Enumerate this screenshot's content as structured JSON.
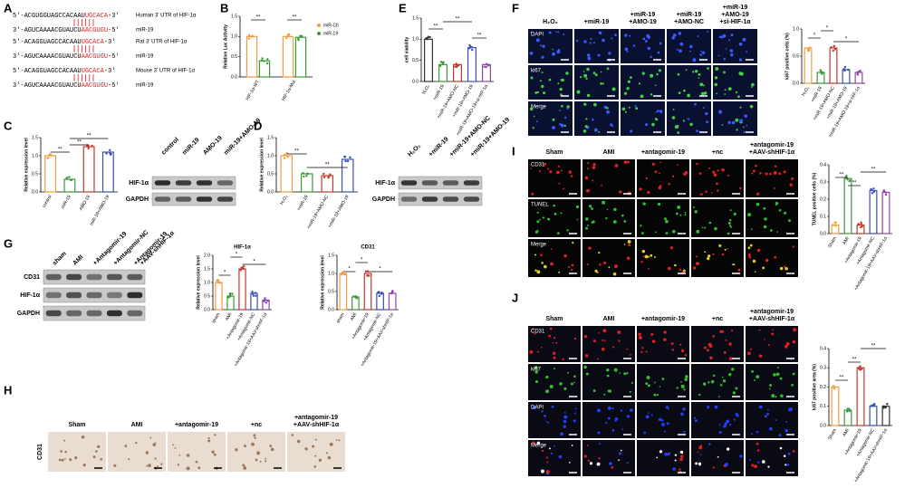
{
  "panels": {
    "A": {
      "label": "A",
      "rows": [
        {
          "pre": "5'-ACGUGGUAGCCACAAU",
          "red": "UGCACA",
          "post": "-3'",
          "name": "Human 3' UTR of HIF-1α"
        },
        {
          "pre": "3'-AGUCAAAACGUAUCU",
          "red": "AACGUGU",
          "post": "-5'",
          "name": "miR-19"
        },
        {
          "pre": "5'-ACAGGUAGCCACAAU",
          "red": "UGCACA",
          "post": "-3'",
          "name": "Rat 3' UTR of HIF-1α"
        },
        {
          "pre": "3'-AGUCAAAACGUAUCU",
          "red": "AACGUGU",
          "post": "-5'",
          "name": "miR-19"
        },
        {
          "pre": "5'-ACAGGUAGCCACAAU",
          "red": "UGCACA",
          "post": "-3'",
          "name": "Mouse 3' UTR of HIF-1α"
        },
        {
          "pre": "3'-AGUCAAAACGUAUCU",
          "red": "AACGUGU",
          "post": "-5'",
          "name": "miR-19"
        }
      ]
    },
    "B": {
      "label": "B"
    },
    "C": {
      "label": "C",
      "lanes": [
        "control",
        "miR-19",
        "AMO-19",
        "miR-19+AMO-19"
      ],
      "rows": [
        "HIF-1α",
        "GAPDH"
      ]
    },
    "D": {
      "label": "D",
      "lanes": [
        "H₂O₂",
        "+miR-19",
        "+miR-19+AMO-NC",
        "+miR-19+AMO-19"
      ],
      "rows": [
        "HIF-1α",
        "GAPDH"
      ]
    },
    "E": {
      "label": "E"
    },
    "F": {
      "label": "F",
      "columns": [
        [
          "H₂O₂"
        ],
        [
          "+miR-19"
        ],
        [
          "+miR-19",
          "+AMO-19"
        ],
        [
          "+miR-19",
          "+AMO-NC"
        ],
        [
          "+miR-19",
          "+AMO-19",
          "+si-HIF-1α"
        ]
      ],
      "rows": [
        "DAPI",
        "ki67",
        "Merge"
      ]
    },
    "G": {
      "label": "G",
      "lanes": [
        "sham",
        "AMI",
        "+Antagomir-19",
        "+Antagomir-NC",
        "+Antagomir-19",
        "+AAV-shHIF-1α"
      ],
      "rows": [
        "CD31",
        "HIF-1α",
        "GAPDH"
      ]
    },
    "H": {
      "label": "H",
      "columns": [
        [
          "Sham"
        ],
        [
          "AMI"
        ],
        [
          "+antagomir-19"
        ],
        [
          "+nc"
        ],
        [
          "+antagomir-19",
          "+AAV-shHIF-1α"
        ]
      ],
      "rows": [
        "CD31"
      ]
    },
    "I": {
      "label": "I",
      "columns": [
        [
          "Sham"
        ],
        [
          "AMI"
        ],
        [
          "+antagomir-19"
        ],
        [
          "+nc"
        ],
        [
          "+antagomir-19",
          "+AAV-shHIF-1α"
        ]
      ],
      "rows": [
        "CD31",
        "TUNEL",
        "Merge"
      ]
    },
    "J": {
      "label": "J",
      "columns": [
        [
          "Sham"
        ],
        [
          "AMI"
        ],
        [
          "+antagomir-19"
        ],
        [
          "+nc"
        ],
        [
          "+antagomir-19",
          "+AAV-shHIF-1α"
        ]
      ],
      "rows": [
        "CD31",
        "ki67",
        "DAPI",
        "Merge"
      ]
    }
  },
  "chart_data": [
    {
      "type": "bar",
      "y_label": "Relative Luc Activity",
      "categories": [
        "HIF-1α-WT",
        "HIF-1α-Mut"
      ],
      "series": [
        {
          "name": "miR-Ctl",
          "color": "#f39c3c",
          "values": [
            1,
            1
          ]
        },
        {
          "name": "miR-19",
          "color": "#3a9a3a",
          "values": [
            0.4,
            0.98
          ]
        }
      ],
      "ylim": [
        0,
        1.5
      ],
      "yticks": [
        {
          "value": 0,
          "label": "0.0"
        },
        0.5,
        {
          "value": 1,
          "label": "1.0"
        },
        1.5
      ],
      "annotations": [
        "**",
        "**"
      ]
    },
    {
      "type": "bar",
      "y_label": "Relative expression level",
      "categories": [
        "control",
        "miR-19",
        "AMO-19",
        "miR-19+AMO-19"
      ],
      "values": [
        1,
        0.35,
        1.25,
        1.1
      ],
      "colors": [
        "#f39c3c",
        "#3a9a3a",
        "#c0392b",
        "#3a4fb0"
      ],
      "ylim": [
        0,
        1.5
      ],
      "yticks": [
        {
          "value": 0,
          "label": "0.0"
        },
        0.5,
        {
          "value": 1,
          "label": "1.0"
        },
        1.5
      ],
      "annotations": [
        "**",
        "**",
        "**"
      ]
    },
    {
      "type": "bar",
      "y_label": "Relative expression level",
      "categories": [
        "H₂O₂",
        "+miR-19",
        "+miR-19+AMO-NC",
        "+miR-19+AMO-19"
      ],
      "values": [
        1,
        0.5,
        0.45,
        0.9
      ],
      "colors": [
        "#f39c3c",
        "#3a9a3a",
        "#c0392b",
        "#3a4fb0"
      ],
      "ylim": [
        0,
        1.5
      ],
      "yticks": [
        {
          "value": 0,
          "label": "0.0"
        },
        0.5,
        {
          "value": 1,
          "label": "1.0"
        },
        1.5
      ],
      "annotations": [
        "**",
        "**"
      ]
    },
    {
      "type": "bar",
      "y_label": "cell viability",
      "categories": [
        "H₂O₂",
        "+miR-19",
        "+miR-19+AMO-NC",
        "+miR-19+AMO-19",
        "+miR-19+AMO-19+si-HIF-1α"
      ],
      "values": [
        1,
        0.4,
        0.4,
        0.8,
        0.4
      ],
      "colors": [
        "#333333",
        "#3a9a3a",
        "#c0392b",
        "#3a4fb0",
        "#8e44ad"
      ],
      "ylim": [
        0,
        1.5
      ],
      "yticks": [
        {
          "value": 0,
          "label": "0.0"
        },
        0.5,
        {
          "value": 1,
          "label": "1.0"
        },
        1.5
      ],
      "annotations": [
        "**",
        "**",
        "**"
      ]
    },
    {
      "type": "bar",
      "y_label": "ki67 positive cells (%)",
      "categories": [
        "H₂O₂",
        "+miR-19",
        "+miR-19+AMO-NC",
        "+miR-19+AMO-19",
        "+miR-19+AMO-19+si-HIF-1α"
      ],
      "values": [
        0.65,
        0.2,
        0.65,
        0.25,
        0.2
      ],
      "colors": [
        "#f39c3c",
        "#3a9a3a",
        "#c0392b",
        "#3a4fb0",
        "#8e44ad"
      ],
      "ylim": [
        0,
        1
      ],
      "yticks": [
        {
          "value": 0,
          "label": "0.0"
        },
        0.5,
        {
          "value": 1,
          "label": "1.0"
        }
      ],
      "annotations": [
        "*",
        "*",
        "*"
      ]
    },
    {
      "type": "bar",
      "title": "HIF-1α",
      "y_label": "Relative expression level",
      "categories": [
        "sham",
        "AMI",
        "+Antagomir-19",
        "+Antagomir-NC",
        "+Antagomir-19+AAV-shHIF-1α"
      ],
      "values": [
        1,
        0.5,
        1.5,
        0.6,
        0.35
      ],
      "colors": [
        "#f39c3c",
        "#3a9a3a",
        "#c0392b",
        "#3a4fb0",
        "#8e44ad"
      ],
      "ylim": [
        0,
        2
      ],
      "yticks": [
        {
          "value": 0,
          "label": "0.0"
        },
        0.5,
        {
          "value": 1,
          "label": "1.0"
        },
        1.5,
        {
          "value": 2,
          "label": "2.0"
        }
      ],
      "annotations": [
        "*",
        "*",
        "*"
      ]
    },
    {
      "type": "bar",
      "title": "CD31",
      "y_label": "Relative expression level",
      "categories": [
        "sham",
        "AMI",
        "+Antagomir-19",
        "+Antagomir-NC",
        "+Antagomir-19+AAV-shHIF-1α"
      ],
      "values": [
        1,
        0.35,
        1,
        0.45,
        0.45
      ],
      "colors": [
        "#f39c3c",
        "#3a9a3a",
        "#c0392b",
        "#3a4fb0",
        "#8e44ad"
      ],
      "ylim": [
        0,
        1.5
      ],
      "yticks": [
        {
          "value": 0,
          "label": "0.0"
        },
        0.5,
        {
          "value": 1,
          "label": "1.0"
        },
        1.5
      ],
      "annotations": [
        "*",
        "*",
        "*"
      ]
    },
    {
      "type": "bar",
      "y_label": "TUNEL positive cells (%)",
      "categories": [
        "Sham",
        "AMI",
        "+Antagomir-19",
        "+Antagomir-NC",
        "+Antagomir-19+AAV-shHIF-1α"
      ],
      "values": [
        0.05,
        0.32,
        0.05,
        0.25,
        0.24
      ],
      "colors": [
        "#f39c3c",
        "#3a9a3a",
        "#c0392b",
        "#3a4fb0",
        "#8e44ad"
      ],
      "ylim": [
        0,
        0.4
      ],
      "yticks": [
        {
          "value": 0,
          "label": "0.0"
        },
        0.1,
        0.2,
        0.3,
        0.4
      ],
      "annotations": [
        "**",
        "**",
        "**"
      ]
    },
    {
      "type": "bar",
      "y_label": "ki67 positive area (%)",
      "categories": [
        "Sham",
        "AMI",
        "+Antagomir-19",
        "+Antagomir-NC",
        "+Antagomir-19+AAV-shHIF-1α"
      ],
      "values": [
        0.2,
        0.08,
        0.3,
        0.1,
        0.1
      ],
      "colors": [
        "#f39c3c",
        "#3a9a3a",
        "#c0392b",
        "#3a4fb0",
        "#333333"
      ],
      "ylim": [
        0,
        0.4
      ],
      "yticks": [
        {
          "value": 0,
          "label": "0.0"
        },
        0.1,
        0.2,
        0.3,
        0.4
      ],
      "annotations": [
        "**",
        "**",
        "**"
      ]
    }
  ]
}
